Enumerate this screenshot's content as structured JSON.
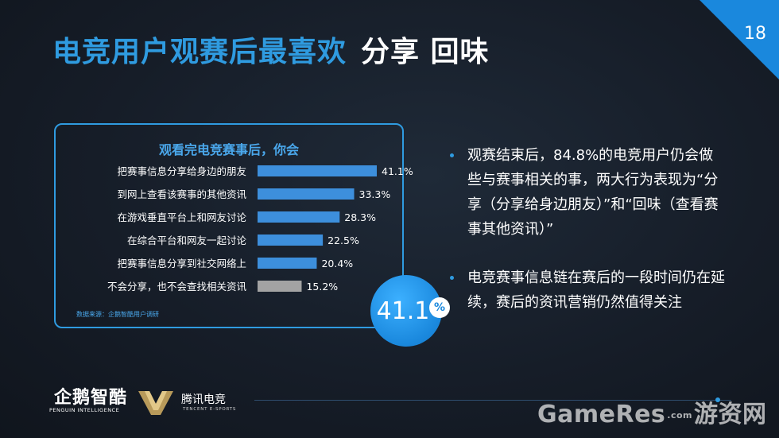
{
  "header": {
    "title_blue": "电竞用户观赛后最喜欢",
    "title_white": "分享 回味",
    "page_number": "18"
  },
  "chart_data": {
    "type": "bar",
    "orientation": "horizontal",
    "title": "观看完电竞赛事后，你会",
    "categories": [
      "把赛事信息分享给身边的朋友",
      "到网上查看该赛事的其他资讯",
      "在游戏垂直平台上和网友讨论",
      "在综合平台和网友一起讨论",
      "把赛事信息分享到社交网络上",
      "不会分享，也不会查找相关资讯"
    ],
    "values": [
      41.1,
      33.3,
      28.3,
      22.5,
      20.4,
      15.2
    ],
    "value_labels": [
      "41.1%",
      "33.3%",
      "28.3%",
      "22.5%",
      "20.4%",
      "15.2%"
    ],
    "bar_colors": [
      "#3d8fdc",
      "#3d8fdc",
      "#3d8fdc",
      "#3d8fdc",
      "#3d8fdc",
      "#a3a3a3"
    ],
    "xlim": [
      0,
      41.1
    ],
    "source": "数据来源：企鹅智酷用户调研"
  },
  "highlight": {
    "value": "41.1",
    "unit": "%"
  },
  "bullets": [
    "观赛结束后，84.8%的电竞用户仍会做些与赛事相关的事，两大行为表现为“分享（分享给身边朋友）”和“回味（查看赛事其他资讯）”",
    "电竞赛事信息链在赛后的一段时间仍在延续，赛后的资讯营销仍然值得关注"
  ],
  "logos": {
    "penguin_main": "企鹅智酷",
    "penguin_sub": "PENGUIN INTELLIGENCE",
    "tencent_main": "腾讯电竞",
    "tencent_sub": "TENCENT E-SPORTS"
  },
  "watermark": {
    "left": "GameRes",
    "dotcom": ".com",
    "right": "游资网"
  },
  "colors": {
    "accent": "#2f9be0",
    "background": "#161d28"
  }
}
